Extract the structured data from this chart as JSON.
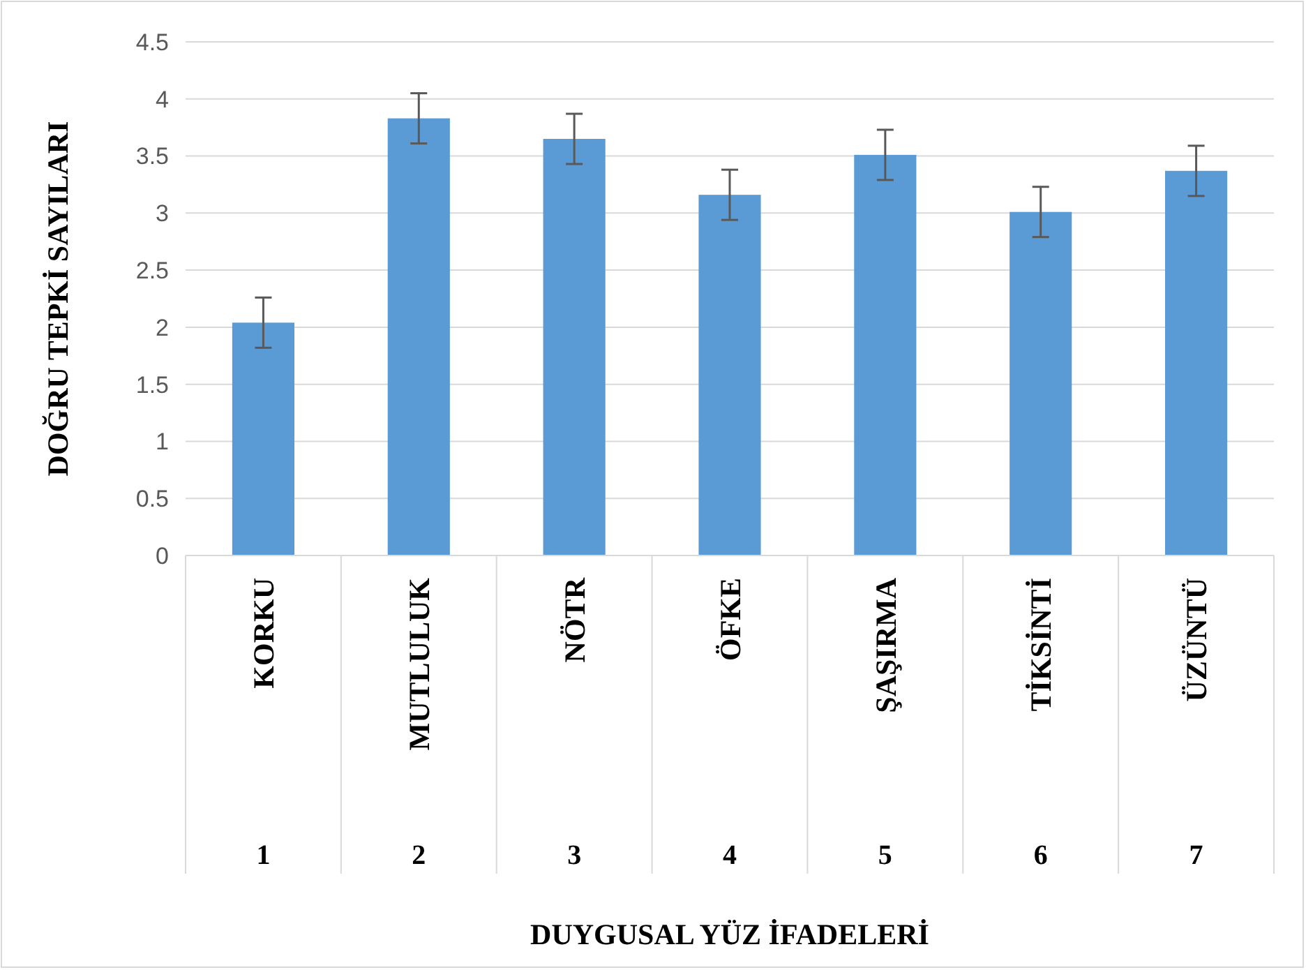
{
  "chart_data": {
    "type": "bar",
    "ylabel": "DOĞRU TEPKİ SAYILARI",
    "categories": [
      "KORKU",
      "MUTLULUK",
      "NÖTR",
      "ÖFKE",
      "ŞAŞIRMA",
      "TİKSİNTİ",
      "ÜZÜNTÜ"
    ],
    "values": [
      2.04,
      3.83,
      3.65,
      3.16,
      3.51,
      3.01,
      3.37
    ],
    "errors": [
      0.22,
      0.22,
      0.22,
      0.22,
      0.22,
      0.22,
      0.22
    ],
    "color": "#5b9bd5",
    "ylim": [
      0,
      4.5
    ],
    "yticks": [
      0,
      0.5,
      1,
      1.5,
      2,
      2.5,
      3,
      3.5,
      4,
      4.5
    ],
    "grid": "y",
    "annotations": [
      "1",
      "2",
      "3",
      "4",
      "5",
      "6",
      "7",
      "DUYGUSAL YÜZ İFADELERİ"
    ]
  }
}
